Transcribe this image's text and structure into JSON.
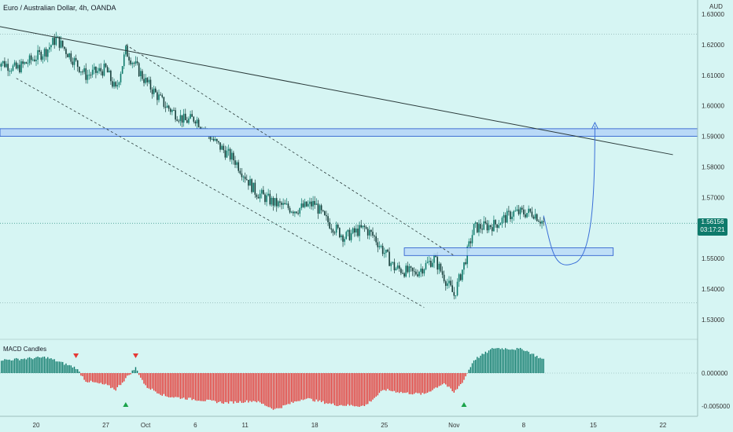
{
  "header": {
    "title": "Euro / Australian Dollar, 4h, OANDA",
    "currency": "AUD"
  },
  "price_tag": {
    "price": "1.56156",
    "countdown": "03:17:21"
  },
  "macd_label": "MACD Candles",
  "colors": {
    "up": "#0e7a6b",
    "down": "#e53935",
    "zone_fill": "#b9d9f7",
    "zone_stroke": "#2255cc",
    "projection": "#3a6fd8",
    "background": "#d6f5f3"
  },
  "chart_data": [
    {
      "type": "candlestick",
      "title": "Euro / Australian Dollar, 4h, OANDA",
      "ylabel": "AUD",
      "y_ticks": [
        "1.63000",
        "1.62000",
        "1.61000",
        "1.60000",
        "1.59000",
        "1.58000",
        "1.57000",
        "1.56000",
        "1.55000",
        "1.54000",
        "1.53000"
      ],
      "ylim": [
        1.527,
        1.635
      ],
      "x_ticks": [
        "20",
        "27",
        "Oct",
        "6",
        "11",
        "18",
        "25",
        "Nov",
        "8",
        "15",
        "22"
      ],
      "grid": false,
      "last_price": 1.56156,
      "close_path": [
        {
          "x": "Sep 16",
          "y": 1.615
        },
        {
          "x": "Sep 18",
          "y": 1.612
        },
        {
          "x": "Sep 21",
          "y": 1.618
        },
        {
          "x": "Sep 22",
          "y": 1.622
        },
        {
          "x": "Sep 24",
          "y": 1.614
        },
        {
          "x": "Sep 25",
          "y": 1.61
        },
        {
          "x": "Sep 27",
          "y": 1.612
        },
        {
          "x": "Sep 28",
          "y": 1.605
        },
        {
          "x": "Sep 29",
          "y": 1.618
        },
        {
          "x": "Oct 1",
          "y": 1.608
        },
        {
          "x": "Oct 3",
          "y": 1.6
        },
        {
          "x": "Oct 5",
          "y": 1.595
        },
        {
          "x": "Oct 6",
          "y": 1.596
        },
        {
          "x": "Oct 8",
          "y": 1.588
        },
        {
          "x": "Oct 10",
          "y": 1.582
        },
        {
          "x": "Oct 12",
          "y": 1.572
        },
        {
          "x": "Oct 14",
          "y": 1.568
        },
        {
          "x": "Oct 16",
          "y": 1.566
        },
        {
          "x": "Oct 18",
          "y": 1.568
        },
        {
          "x": "Oct 19",
          "y": 1.563
        },
        {
          "x": "Oct 21",
          "y": 1.557
        },
        {
          "x": "Oct 23",
          "y": 1.56
        },
        {
          "x": "Oct 24",
          "y": 1.557
        },
        {
          "x": "Oct 26",
          "y": 1.547
        },
        {
          "x": "Oct 28",
          "y": 1.545
        },
        {
          "x": "Oct 30",
          "y": 1.55
        },
        {
          "x": "Nov 1",
          "y": 1.538
        },
        {
          "x": "Nov 2",
          "y": 1.548
        },
        {
          "x": "Nov 3",
          "y": 1.56
        },
        {
          "x": "Nov 5",
          "y": 1.561
        },
        {
          "x": "Nov 7",
          "y": 1.565
        },
        {
          "x": "Nov 9",
          "y": 1.565
        },
        {
          "x": "Nov 10",
          "y": 1.5616
        }
      ],
      "annotations": [
        {
          "type": "horizontal-zone",
          "y_low": 1.59,
          "y_high": 1.5925
        },
        {
          "type": "rectangle",
          "x_start": "Oct 27",
          "x_end": "Nov 17",
          "y_low": 1.551,
          "y_high": 1.5535
        },
        {
          "type": "trendline",
          "points": [
            [
              "Sep 13",
              1.628
            ],
            [
              "Nov 23",
              1.584
            ]
          ]
        },
        {
          "type": "dashed-channel-upper",
          "points": [
            [
              "Sep 29",
              1.62
            ],
            [
              "Nov 1",
              1.551
            ]
          ]
        },
        {
          "type": "dashed-channel-lower",
          "points": [
            [
              "Sep 18",
              1.609
            ],
            [
              "Oct 29",
              1.534
            ]
          ]
        },
        {
          "type": "projection-arrow",
          "points": [
            [
              "Nov 10",
              1.562
            ],
            [
              "Nov 13",
              1.551
            ],
            [
              "Nov 15",
              1.594
            ]
          ]
        }
      ]
    },
    {
      "type": "histogram",
      "title": "MACD Candles",
      "y_ticks": [
        "0.000000",
        "-0.005000"
      ],
      "ylim": [
        -0.0065,
        0.004
      ],
      "signals": [
        {
          "kind": "sell",
          "x": "Sep 24"
        },
        {
          "kind": "sell",
          "x": "Sep 30"
        },
        {
          "kind": "buy",
          "x": "Sep 29"
        },
        {
          "kind": "buy",
          "x": "Nov 2"
        }
      ],
      "value_path": [
        {
          "x": "Sep 13",
          "y": 0.0022
        },
        {
          "x": "Sep 17",
          "y": 0.002
        },
        {
          "x": "Sep 21",
          "y": 0.0024
        },
        {
          "x": "Sep 24",
          "y": 0.0008
        },
        {
          "x": "Sep 25",
          "y": -0.0012
        },
        {
          "x": "Sep 27",
          "y": -0.0018
        },
        {
          "x": "Sep 28",
          "y": -0.0025
        },
        {
          "x": "Sep 29",
          "y": -0.0008
        },
        {
          "x": "Sep 30",
          "y": 0.0008
        },
        {
          "x": "Oct 1",
          "y": -0.002
        },
        {
          "x": "Oct 3",
          "y": -0.0035
        },
        {
          "x": "Oct 6",
          "y": -0.004
        },
        {
          "x": "Oct 9",
          "y": -0.0045
        },
        {
          "x": "Oct 12",
          "y": -0.0042
        },
        {
          "x": "Oct 14",
          "y": -0.0055
        },
        {
          "x": "Oct 17",
          "y": -0.0038
        },
        {
          "x": "Oct 20",
          "y": -0.0048
        },
        {
          "x": "Oct 23",
          "y": -0.005
        },
        {
          "x": "Oct 25",
          "y": -0.0025
        },
        {
          "x": "Oct 27",
          "y": -0.003
        },
        {
          "x": "Oct 29",
          "y": -0.0032
        },
        {
          "x": "Oct 31",
          "y": -0.0015
        },
        {
          "x": "Nov 1",
          "y": -0.003
        },
        {
          "x": "Nov 2",
          "y": -0.001
        },
        {
          "x": "Nov 3",
          "y": 0.002
        },
        {
          "x": "Nov 5",
          "y": 0.0038
        },
        {
          "x": "Nov 8",
          "y": 0.0036
        },
        {
          "x": "Nov 10",
          "y": 0.002
        }
      ]
    }
  ]
}
